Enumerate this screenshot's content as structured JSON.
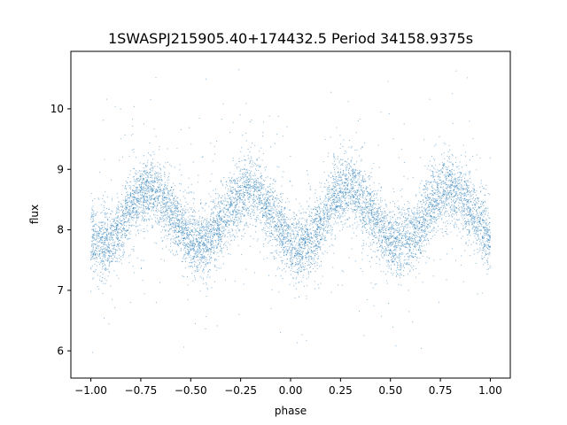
{
  "chart_data": {
    "type": "scatter",
    "title": "1SWASPJ215905.40+174432.5 Period 34158.9375s",
    "xlabel": "phase",
    "ylabel": "flux",
    "xlim": [
      -1.1,
      1.1
    ],
    "ylim": [
      5.55,
      10.95
    ],
    "xticks": [
      -1.0,
      -0.75,
      -0.5,
      -0.25,
      0.0,
      0.25,
      0.5,
      0.75,
      1.0
    ],
    "xtick_labels": [
      "−1.00",
      "−0.75",
      "−0.50",
      "−0.25",
      "0.00",
      "0.25",
      "0.50",
      "0.75",
      "1.00"
    ],
    "yticks": [
      6,
      7,
      8,
      9,
      10
    ],
    "ytick_labels": [
      "6",
      "7",
      "8",
      "9",
      "10"
    ],
    "grid": false,
    "series": [
      {
        "marker_color": "#1f77b4",
        "description_points": "dense phase-folded light curve; band centre follows a sinusoid with two cycles per unit phase",
        "x_range": [
          -1.0,
          1.0
        ],
        "y_range": [
          5.8,
          10.7
        ],
        "trend_x": [
          -1.0,
          -0.95,
          -0.9,
          -0.85,
          -0.8,
          -0.75,
          -0.7,
          -0.65,
          -0.6,
          -0.55,
          -0.5,
          -0.45,
          -0.4,
          -0.35,
          -0.3,
          -0.25,
          -0.2,
          -0.15,
          -0.1,
          -0.05,
          0.0,
          0.05,
          0.1,
          0.15,
          0.2,
          0.25,
          0.3,
          0.35,
          0.4,
          0.45,
          0.5,
          0.55,
          0.6,
          0.65,
          0.7,
          0.75,
          0.8,
          0.85,
          0.9,
          0.95,
          1.0
        ],
        "trend_y": [
          7.85,
          7.78,
          7.82,
          8.05,
          8.35,
          8.6,
          8.65,
          8.55,
          8.3,
          8.05,
          7.82,
          7.75,
          7.85,
          8.1,
          8.4,
          8.6,
          8.68,
          8.55,
          8.3,
          8.0,
          7.78,
          7.7,
          7.85,
          8.1,
          8.4,
          8.62,
          8.67,
          8.55,
          8.3,
          8.0,
          7.82,
          7.78,
          7.88,
          8.1,
          8.4,
          8.6,
          8.68,
          8.55,
          8.35,
          8.1,
          7.85
        ]
      }
    ]
  }
}
